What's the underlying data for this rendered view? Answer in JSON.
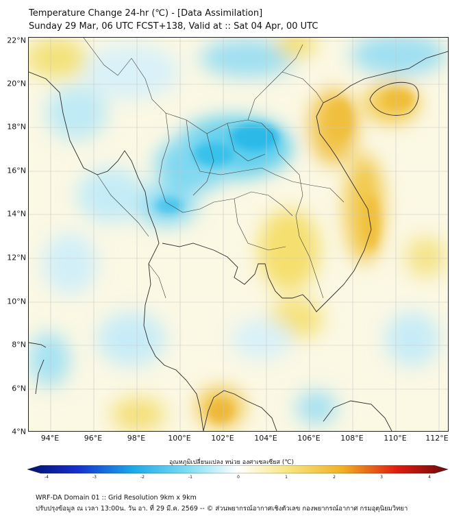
{
  "header": {
    "title": "Temperature Change 24-hr (℃) - [Data Assimilation]",
    "subtitle": "Sunday 29 Mar, 06 UTC FCST+138, Valid at :: Sat 04 Apr, 00 UTC"
  },
  "map": {
    "lat_labels": [
      "22°N",
      "20°N",
      "18°N",
      "16°N",
      "14°N",
      "12°N",
      "10°N",
      "8°N",
      "6°N",
      "4°N"
    ],
    "lon_labels": [
      "94°E",
      "96°E",
      "98°E",
      "100°E",
      "102°E",
      "104°E",
      "106°E",
      "108°E",
      "110°E",
      "112°E"
    ],
    "lat_range": [
      4,
      22
    ],
    "lon_range": [
      93,
      112.5
    ]
  },
  "colorbar": {
    "title": "อุณหภูมิเปลี่ยนแปลง หน่วย องศาเซลเซียส (℃)",
    "ticks": [
      "-4",
      "-3",
      "-2",
      "-1",
      "0",
      "1",
      "2",
      "3",
      "4"
    ],
    "min": -4,
    "max": 4
  },
  "footer": {
    "line1": "WRF-DA Domain 01 :: Grid Resolution 9km x 9km",
    "line2": "ปรับปรุงข้อมูล ณ เวลา 13:00น. วัน อา. ที่ 29 มี.ค. 2569 -- © ส่วนพยากรณ์อากาศเชิงตัวเลข กองพยากรณ์อากาศ กรมอุตุนิยมวิทยา"
  }
}
